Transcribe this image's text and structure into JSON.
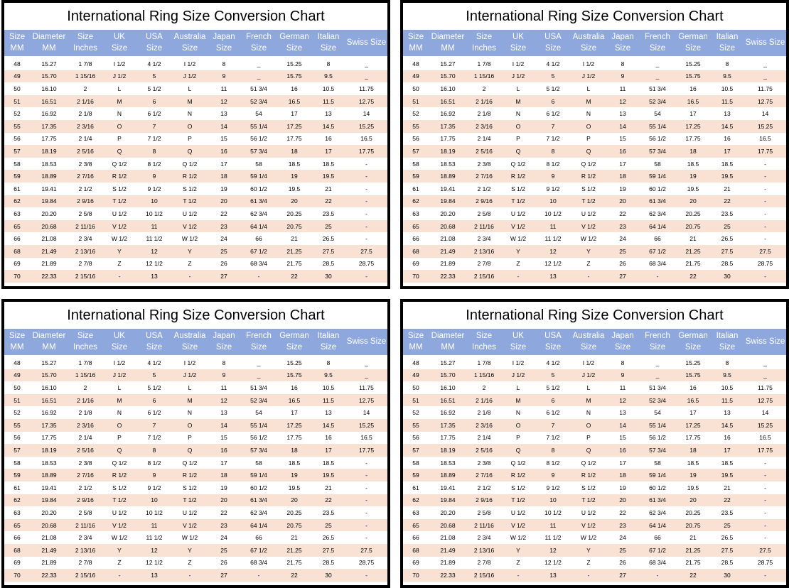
{
  "chart_title": "International Ring Size Conversion Chart",
  "headers": [
    [
      "Size",
      "MM"
    ],
    [
      "Diameter",
      "MM"
    ],
    [
      "Size",
      "Inches"
    ],
    [
      "UK",
      "Size"
    ],
    [
      "USA",
      "Size"
    ],
    [
      "Australia",
      "Size"
    ],
    [
      "Japan",
      "Size"
    ],
    [
      "French",
      "Size"
    ],
    [
      "German",
      "Size"
    ],
    [
      "Italian",
      "Size"
    ],
    [
      "Swiss Size"
    ]
  ],
  "rows": [
    [
      "48",
      "15.27",
      "1 7/8",
      "I 1/2",
      "4 1/2",
      "I 1/2",
      "8",
      "_",
      "15.25",
      "8",
      "_"
    ],
    [
      "49",
      "15.70",
      "1 15/16",
      "J 1/2",
      "5",
      "J 1/2",
      "9",
      "_",
      "15.75",
      "9.5",
      "_"
    ],
    [
      "50",
      "16.10",
      "2",
      "L",
      "5 1/2",
      "L",
      "11",
      "51 3/4",
      "16",
      "10.5",
      "11.75"
    ],
    [
      "51",
      "16.51",
      "2 1/16",
      "M",
      "6",
      "M",
      "12",
      "52 3/4",
      "16.5",
      "11.5",
      "12.75"
    ],
    [
      "52",
      "16.92",
      "2 1/8",
      "N",
      "6 1/2",
      "N",
      "13",
      "54",
      "17",
      "13",
      "14"
    ],
    [
      "55",
      "17.35",
      "2 3/16",
      "O",
      "7",
      "O",
      "14",
      "55 1/4",
      "17.25",
      "14.5",
      "15.25"
    ],
    [
      "56",
      "17.75",
      "2 1/4",
      "P",
      "7 1/2",
      "P",
      "15",
      "56 1/2",
      "17.75",
      "16",
      "16.5"
    ],
    [
      "57",
      "18.19",
      "2 5/16",
      "Q",
      "8",
      "Q",
      "16",
      "57 3/4",
      "18",
      "17",
      "17.75"
    ],
    [
      "58",
      "18.53",
      "2 3/8",
      "Q 1/2",
      "8 1/2",
      "Q 1/2",
      "17",
      "58",
      "18.5",
      "18.5",
      "-"
    ],
    [
      "59",
      "18.89",
      "2 7/16",
      "R 1/2",
      "9",
      "R 1/2",
      "18",
      "59 1/4",
      "19",
      "19.5",
      "-"
    ],
    [
      "61",
      "19.41",
      "2 1/2",
      "S 1/2",
      "9 1/2",
      "S 1/2",
      "19",
      "60 1/2",
      "19.5",
      "21",
      "-"
    ],
    [
      "62",
      "19.84",
      "2 9/16",
      "T 1/2",
      "10",
      "T 1/2",
      "20",
      "61 3/4",
      "20",
      "22",
      "-"
    ],
    [
      "63",
      "20.20",
      "2 5/8",
      "U 1/2",
      "10 1/2",
      "U 1/2",
      "22",
      "62 3/4",
      "20.25",
      "23.5",
      "-"
    ],
    [
      "65",
      "20.68",
      "2 11/16",
      "V 1/2",
      "11",
      "V 1/2",
      "23",
      "64 1/4",
      "20.75",
      "25",
      "-"
    ],
    [
      "66",
      "21.08",
      "2 3/4",
      "W 1/2",
      "11 1/2",
      "W 1/2",
      "24",
      "66",
      "21",
      "26.5",
      "-"
    ],
    [
      "68",
      "21.49",
      "2 13/16",
      "Y",
      "12",
      "Y",
      "25",
      "67 1/2",
      "21.25",
      "27.5",
      "27.5"
    ],
    [
      "69",
      "21.89",
      "2 7/8",
      "Z",
      "12 1/2",
      "Z",
      "26",
      "68 3/4",
      "21.75",
      "28.5",
      "28.75"
    ],
    [
      "70",
      "22.33",
      "2 15/16",
      "-",
      "13",
      "-",
      "27",
      "-",
      "22",
      "30",
      "-"
    ]
  ],
  "colors": {
    "header_bg": "#8ea7dd",
    "header_text": "#ffffff",
    "row_alt": "#f9e1d4",
    "border": "#000000"
  }
}
